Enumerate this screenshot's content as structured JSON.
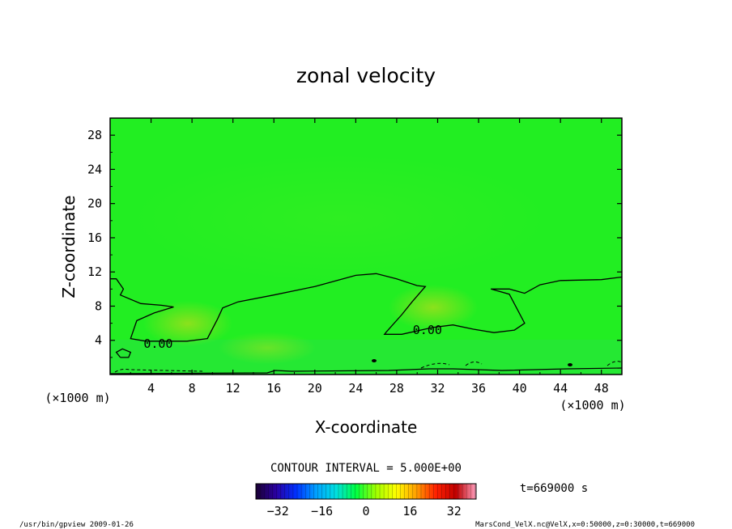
{
  "chart_data": {
    "type": "heatmap",
    "title": "zonal velocity",
    "xlabel": "X-coordinate",
    "ylabel": "Z-coordinate",
    "x_unit": "(×1000 m)",
    "y_unit": "(×1000 m)",
    "xlim": [
      0,
      50
    ],
    "ylim": [
      0,
      30
    ],
    "x_ticks": [
      4,
      8,
      12,
      16,
      20,
      24,
      28,
      32,
      36,
      40,
      44,
      48
    ],
    "y_ticks": [
      4,
      8,
      12,
      16,
      20,
      24,
      28
    ],
    "contour_interval_text": "CONTOUR INTERVAL = 5.000E+00",
    "contour_labels": [
      {
        "text": "0.00",
        "x": 4.7,
        "z": 3.6
      },
      {
        "text": "0.00",
        "x": 31.0,
        "z": 5.2
      }
    ],
    "zero_contour": [
      [
        0,
        11.2
      ],
      [
        0.6,
        11.2
      ],
      [
        1.3,
        10.0
      ],
      [
        1.0,
        9.3
      ],
      [
        3.0,
        8.3
      ],
      [
        5.0,
        8.1
      ],
      [
        6.2,
        7.9
      ],
      [
        4.3,
        7.2
      ],
      [
        2.6,
        6.3
      ],
      [
        2.0,
        4.2
      ],
      [
        3.5,
        3.9
      ],
      [
        5.5,
        3.9
      ],
      [
        7.5,
        3.9
      ],
      [
        9.5,
        4.2
      ],
      [
        10.5,
        6.5
      ],
      [
        11.0,
        7.8
      ],
      [
        12.5,
        8.5
      ],
      [
        16.0,
        9.3
      ],
      [
        20.0,
        10.3
      ],
      [
        24.0,
        11.6
      ],
      [
        26.0,
        11.8
      ],
      [
        28.0,
        11.2
      ],
      [
        30.0,
        10.4
      ],
      [
        30.8,
        10.3
      ],
      [
        29.5,
        8.5
      ],
      [
        28.5,
        7.0
      ],
      [
        27.0,
        5.0
      ],
      [
        26.8,
        4.7
      ],
      [
        28.5,
        4.7
      ],
      [
        31.5,
        5.5
      ],
      [
        33.5,
        5.8
      ],
      [
        35.5,
        5.3
      ],
      [
        37.5,
        4.9
      ],
      [
        39.5,
        5.2
      ],
      [
        40.5,
        6.0
      ],
      [
        39.0,
        9.4
      ],
      [
        37.2,
        10.0
      ],
      [
        39.0,
        10.0
      ],
      [
        40.5,
        9.5
      ],
      [
        42.0,
        10.5
      ],
      [
        44.0,
        11.0
      ],
      [
        48.0,
        11.1
      ],
      [
        50.0,
        11.4
      ]
    ],
    "zero_contour_small_loop": [
      [
        1.0,
        2.0
      ],
      [
        0.6,
        2.6
      ],
      [
        1.2,
        3.0
      ],
      [
        2.0,
        2.6
      ],
      [
        1.8,
        2.0
      ],
      [
        1.0,
        2.0
      ]
    ],
    "colorbar": {
      "range": [
        -40,
        40
      ],
      "ticks": [
        -32,
        -16,
        0,
        16,
        32
      ],
      "color_stops": [
        "#1a0033",
        "#2a00a0",
        "#0030ff",
        "#00a0ff",
        "#00e0e0",
        "#00ff40",
        "#a0ff00",
        "#ffff00",
        "#ffa000",
        "#ff2000",
        "#c00000",
        "#ffa0c0"
      ]
    },
    "field_color_low": "#22dd33",
    "field_color_main": "#22ee22",
    "warm_patch_color": "#b4dc18",
    "time_label": "t=669000 s",
    "footer_left": "/usr/bin/gpview  2009-01-26",
    "footer_right": "MarsCond_VelX.nc@VelX,x=0:50000,z=0:30000,t=669000"
  }
}
